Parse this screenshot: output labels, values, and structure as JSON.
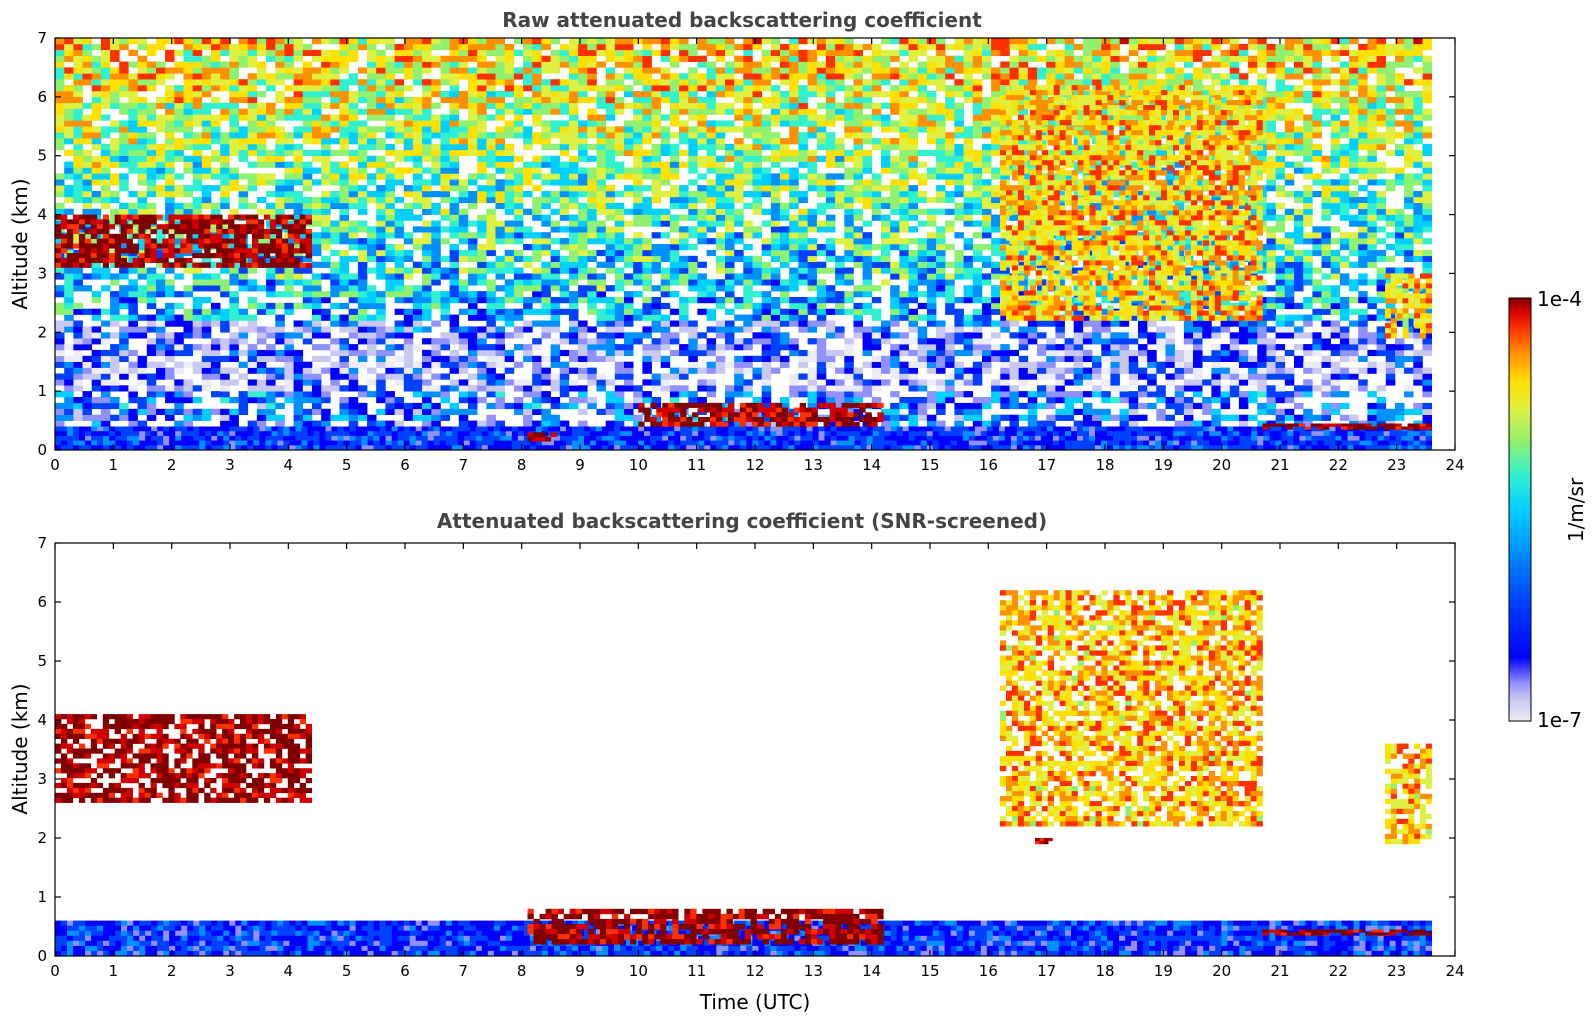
{
  "chart_data": [
    {
      "type": "heatmap",
      "title": "Raw attenuated backscattering coefficient",
      "xlabel": "",
      "ylabel": "Altitude (km)",
      "xlim": [
        0,
        24
      ],
      "ylim": [
        0,
        7
      ],
      "xticks": [
        "0",
        "1",
        "2",
        "3",
        "4",
        "5",
        "6",
        "7",
        "8",
        "9",
        "10",
        "11",
        "12",
        "13",
        "14",
        "15",
        "16",
        "17",
        "18",
        "19",
        "20",
        "21",
        "22",
        "23",
        "24"
      ],
      "yticks": [
        "0",
        "1",
        "2",
        "3",
        "4",
        "5",
        "6",
        "7"
      ],
      "data_end_hour": 23.6,
      "features": [
        {
          "label": "boundary layer",
          "x": [
            0,
            23.6
          ],
          "y": [
            0,
            0.4
          ],
          "level": "low"
        },
        {
          "label": "cloud layer",
          "x": [
            0,
            4.4
          ],
          "y": [
            3.1,
            4.0
          ],
          "level": "high"
        },
        {
          "label": "low cloud",
          "x": [
            8.1,
            8.6
          ],
          "y": [
            0.15,
            0.3
          ],
          "level": "high"
        },
        {
          "label": "low cloud",
          "x": [
            10,
            14.2
          ],
          "y": [
            0.4,
            0.8
          ],
          "level": "high"
        },
        {
          "label": "descending cirrus",
          "x": [
            16.2,
            20.7
          ],
          "y": [
            2.2,
            6.2
          ],
          "level": "medium"
        },
        {
          "label": "low cloud",
          "x": [
            20.7,
            23.6
          ],
          "y": [
            0.35,
            0.45
          ],
          "level": "high"
        },
        {
          "label": "cloud",
          "x": [
            22.8,
            23.6
          ],
          "y": [
            1.9,
            3.0
          ],
          "level": "medium"
        }
      ]
    },
    {
      "type": "heatmap",
      "title": "Attenuated backscattering coefficient (SNR-screened)",
      "xlabel": "Time (UTC)",
      "ylabel": "Altitude (km)",
      "xlim": [
        0,
        24
      ],
      "ylim": [
        0,
        7
      ],
      "xticks": [
        "0",
        "1",
        "2",
        "3",
        "4",
        "5",
        "6",
        "7",
        "8",
        "9",
        "10",
        "11",
        "12",
        "13",
        "14",
        "15",
        "16",
        "17",
        "18",
        "19",
        "20",
        "21",
        "22",
        "23",
        "24"
      ],
      "yticks": [
        "0",
        "1",
        "2",
        "3",
        "4",
        "5",
        "6",
        "7"
      ],
      "data_end_hour": 23.6,
      "features": [
        {
          "label": "boundary layer",
          "x": [
            0,
            23.6
          ],
          "y": [
            0,
            0.6
          ],
          "level": "low"
        },
        {
          "label": "cloud layer",
          "x": [
            0,
            4.4
          ],
          "y": [
            2.6,
            4.1
          ],
          "level": "high"
        },
        {
          "label": "low cloud",
          "x": [
            8.1,
            14.2
          ],
          "y": [
            0.2,
            0.8
          ],
          "level": "high"
        },
        {
          "label": "descending cirrus",
          "x": [
            16.2,
            20.7
          ],
          "y": [
            2.2,
            6.2
          ],
          "level": "medium"
        },
        {
          "label": "small cloud",
          "x": [
            16.8,
            17.1
          ],
          "y": [
            1.9,
            2.0
          ],
          "level": "high"
        },
        {
          "label": "low cloud",
          "x": [
            20.7,
            23.6
          ],
          "y": [
            0.35,
            0.45
          ],
          "level": "high"
        },
        {
          "label": "cloud",
          "x": [
            22.8,
            23.6
          ],
          "y": [
            1.9,
            3.6
          ],
          "level": "medium"
        }
      ]
    }
  ],
  "colorbar": {
    "label": "1/m/sr",
    "min_label": "1e-7",
    "max_label": "1e-4",
    "scale": "log",
    "colormap": [
      "#ececf8",
      "#c8c8f0",
      "#9090ff",
      "#0000ff",
      "#0040ff",
      "#0090ff",
      "#00d0ff",
      "#30f0d0",
      "#90f070",
      "#e0f040",
      "#ffe000",
      "#ff9000",
      "#ff3000",
      "#d00000",
      "#800000"
    ]
  }
}
